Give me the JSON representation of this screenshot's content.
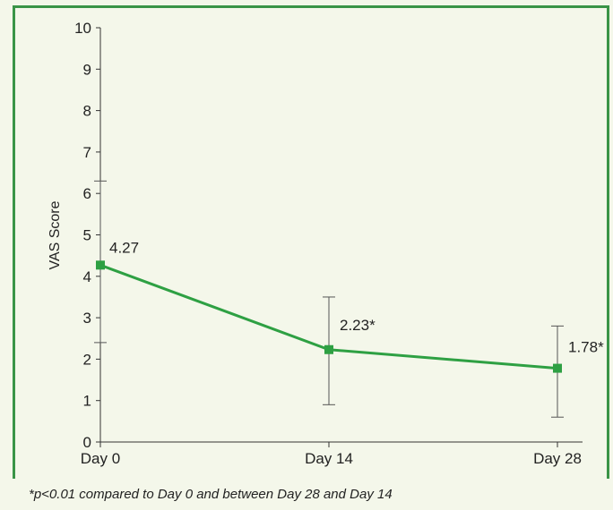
{
  "chart_data": {
    "type": "line",
    "categories": [
      "Day 0",
      "Day 14",
      "Day 28"
    ],
    "series": [
      {
        "values": [
          4.27,
          2.23,
          1.78
        ],
        "value_labels": [
          "4.27",
          "2.23*",
          "1.78*"
        ],
        "error_low": [
          2.4,
          0.9,
          0.6
        ],
        "error_high": [
          6.3,
          3.5,
          2.8
        ],
        "color": "#2ea043",
        "marker": "square"
      }
    ],
    "ylabel": "VAS Score",
    "ylim": [
      0,
      10
    ],
    "yticks": [
      "0",
      "1",
      "2",
      "3",
      "4",
      "5",
      "6",
      "7",
      "8",
      "9",
      "10"
    ],
    "grid": false,
    "footnote": "*p<0.01 compared to Day 0 and between Day 28 and Day 14"
  },
  "colors": {
    "frame": "#3a9447",
    "background": "#f4f7ea",
    "line": "#2ea043",
    "marker": "#2ea043",
    "error_bar": "#555555"
  }
}
